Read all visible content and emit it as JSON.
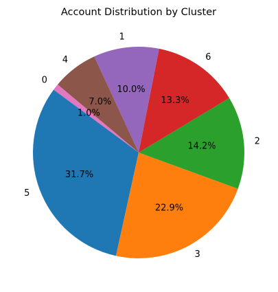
{
  "chart_data": {
    "type": "pie",
    "title": "Account Distribution by Cluster",
    "start_angle_deg": 140,
    "direction": "counterclockwise",
    "slices": [
      {
        "label": "0",
        "value": 1.0,
        "pct_label": "1.0%",
        "color": "#e377c2"
      },
      {
        "label": "5",
        "value": 31.7,
        "pct_label": "31.7%",
        "color": "#1f77b4"
      },
      {
        "label": "3",
        "value": 22.9,
        "pct_label": "22.9%",
        "color": "#ff7f0e"
      },
      {
        "label": "2",
        "value": 14.2,
        "pct_label": "14.2%",
        "color": "#2ca02c"
      },
      {
        "label": "6",
        "value": 13.3,
        "pct_label": "13.3%",
        "color": "#d62728"
      },
      {
        "label": "1",
        "value": 10.0,
        "pct_label": "10.0%",
        "color": "#9467bd"
      },
      {
        "label": "4",
        "value": 7.0,
        "pct_label": "7.0%",
        "color": "#8c564b"
      }
    ]
  }
}
